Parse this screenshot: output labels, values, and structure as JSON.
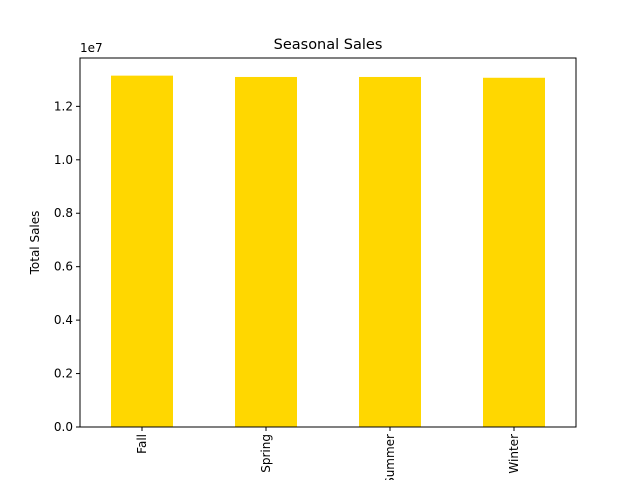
{
  "chart_data": {
    "type": "bar",
    "title": "Seasonal Sales",
    "xlabel": "",
    "ylabel": "Total Sales",
    "categories": [
      "Fall",
      "Spring",
      "Summer",
      "Winter"
    ],
    "values": [
      13150000,
      13100000,
      13100000,
      13070000
    ],
    "ylim": [
      0,
      13810000
    ],
    "y_ticks": [
      0,
      2000000,
      4000000,
      6000000,
      8000000,
      10000000,
      12000000
    ],
    "y_tick_labels": [
      "0.0",
      "0.2",
      "0.4",
      "0.6",
      "0.8",
      "1.0",
      "1.2"
    ],
    "y_offset_label": "1e7",
    "x_tick_rotation": 90,
    "bar_color": "#FFD700",
    "grid": false,
    "legend": "none"
  }
}
